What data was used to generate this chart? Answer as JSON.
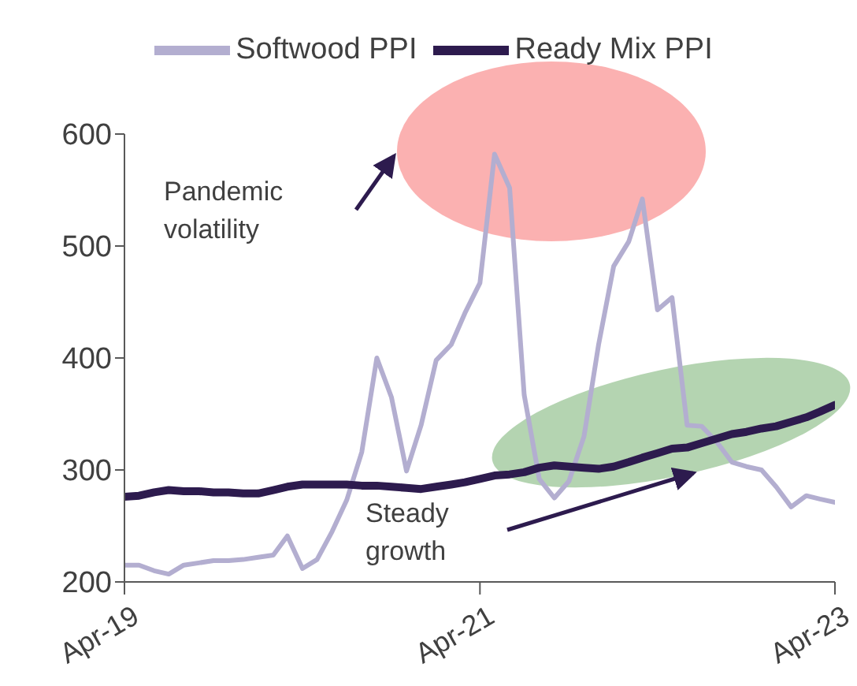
{
  "chart_data": {
    "type": "line",
    "x": [
      "2019-04",
      "2019-05",
      "2019-06",
      "2019-07",
      "2019-08",
      "2019-09",
      "2019-10",
      "2019-11",
      "2019-12",
      "2020-01",
      "2020-02",
      "2020-03",
      "2020-04",
      "2020-05",
      "2020-06",
      "2020-07",
      "2020-08",
      "2020-09",
      "2020-10",
      "2020-11",
      "2020-12",
      "2021-01",
      "2021-02",
      "2021-03",
      "2021-04",
      "2021-05",
      "2021-06",
      "2021-07",
      "2021-08",
      "2021-09",
      "2021-10",
      "2021-11",
      "2021-12",
      "2022-01",
      "2022-02",
      "2022-03",
      "2022-04",
      "2022-05",
      "2022-06",
      "2022-07",
      "2022-08",
      "2022-09",
      "2022-10",
      "2022-11",
      "2022-12",
      "2023-01",
      "2023-02",
      "2023-03",
      "2023-04"
    ],
    "series": [
      {
        "name": "Softwood PPI",
        "color": "#b3aed0",
        "values": [
          215,
          215,
          210,
          207,
          215,
          217,
          219,
          219,
          220,
          222,
          224,
          241,
          212,
          220,
          245,
          273,
          316,
          400,
          365,
          299,
          340,
          398,
          412,
          440,
          467,
          582,
          552,
          367,
          292,
          275,
          290,
          330,
          412,
          482,
          504,
          542,
          443,
          454,
          340,
          339,
          325,
          307,
          303,
          300,
          285,
          267,
          277,
          274,
          271
        ]
      },
      {
        "name": "Ready Mix PPI",
        "color": "#2d1b4e",
        "values": [
          276,
          277,
          280,
          282,
          281,
          281,
          280,
          280,
          279,
          279,
          282,
          285,
          287,
          287,
          287,
          287,
          286,
          286,
          285,
          284,
          283,
          285,
          287,
          289,
          292,
          295,
          296,
          298,
          302,
          304,
          303,
          302,
          301,
          303,
          307,
          311,
          315,
          319,
          320,
          324,
          328,
          332,
          334,
          337,
          339,
          343,
          347,
          352,
          358
        ]
      }
    ],
    "xlim": [
      "2019-04",
      "2023-04"
    ],
    "xticks": [
      {
        "value": "2019-04",
        "label": "Apr-19"
      },
      {
        "value": "2021-04",
        "label": "Apr-21"
      },
      {
        "value": "2023-04",
        "label": "Apr-23"
      }
    ],
    "ylim": [
      200,
      600
    ],
    "yticks": [
      200,
      300,
      400,
      500,
      600
    ],
    "grid": false,
    "legend": "top",
    "marker": "none",
    "line_style": "solid",
    "annotations": [
      "Pandemic volatility",
      "Steady growth"
    ]
  }
}
